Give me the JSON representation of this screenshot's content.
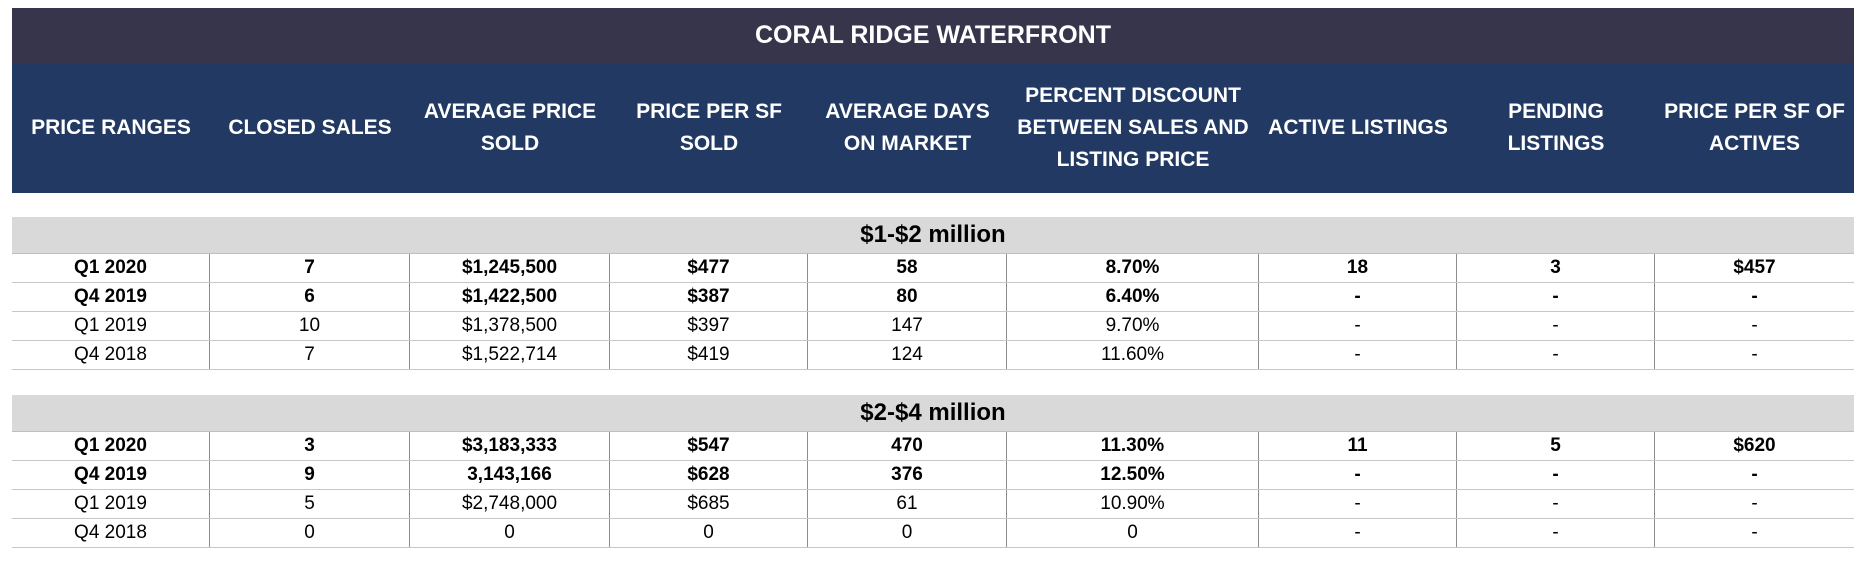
{
  "title": "CORAL RIDGE WATERFRONT",
  "headers": [
    "PRICE RANGES",
    "CLOSED SALES",
    "AVERAGE PRICE\nSOLD",
    "PRICE PER SF\nSOLD",
    "AVERAGE DAYS\nON MARKET",
    "PERCENT DISCOUNT\nBETWEEN SALES AND\nLISTING PRICE",
    "ACTIVE LISTINGS",
    "PENDING\nLISTINGS",
    "PRICE PER SF OF\nACTIVES"
  ],
  "groups": [
    {
      "title": "$1-$2 million",
      "rows": [
        {
          "bold": true,
          "cells": [
            "Q1 2020",
            "7",
            "$1,245,500",
            "$477",
            "58",
            "8.70%",
            "18",
            "3",
            "$457"
          ]
        },
        {
          "bold": true,
          "cells": [
            "Q4 2019",
            "6",
            "$1,422,500",
            "$387",
            "80",
            "6.40%",
            "-",
            "-",
            "-"
          ]
        },
        {
          "bold": false,
          "cells": [
            "Q1 2019",
            "10",
            "$1,378,500",
            "$397",
            "147",
            "9.70%",
            "-",
            "-",
            "-"
          ]
        },
        {
          "bold": false,
          "cells": [
            "Q4 2018",
            "7",
            "$1,522,714",
            "$419",
            "124",
            "11.60%",
            "-",
            "-",
            "-"
          ]
        }
      ]
    },
    {
      "title": "$2-$4 million",
      "rows": [
        {
          "bold": true,
          "cells": [
            "Q1 2020",
            "3",
            "$3,183,333",
            "$547",
            "470",
            "11.30%",
            "11",
            "5",
            "$620"
          ]
        },
        {
          "bold": true,
          "cells": [
            "Q4 2019",
            "9",
            "3,143,166",
            "$628",
            "376",
            "12.50%",
            "-",
            "-",
            "-"
          ]
        },
        {
          "bold": false,
          "cells": [
            "Q1 2019",
            "5",
            "$2,748,000",
            "$685",
            "61",
            "10.90%",
            "-",
            "-",
            "-"
          ]
        },
        {
          "bold": false,
          "cells": [
            "Q4 2018",
            "0",
            "0",
            "0",
            "0",
            "0",
            "-",
            "-",
            "-"
          ]
        }
      ]
    }
  ]
}
